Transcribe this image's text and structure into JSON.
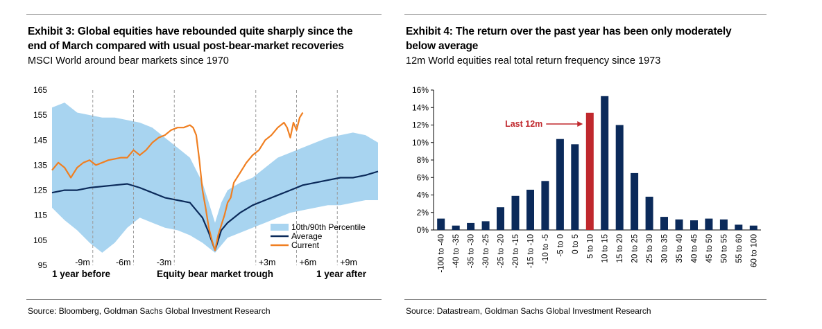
{
  "left": {
    "title_line1": "Exhibit 3: Global equities have rebounded quite sharply since the",
    "title_line2": "end of March compared with usual post-bear-market recoveries",
    "subtitle": "MSCI World around bear markets since 1970",
    "source": "Source: Bloomberg, Goldman Sachs Global Investment Research"
  },
  "right": {
    "title_line1": "Exhibit 4: The return over the past year has been only moderately",
    "title_line2": "below average",
    "subtitle": "12m World equities real total return frequency since 1973",
    "source": "Source: Datastream, Goldman Sachs Global Investment Research"
  },
  "chart_data": [
    {
      "type": "line",
      "ylim": [
        95,
        165
      ],
      "y_ticks": [
        95,
        105,
        115,
        125,
        135,
        145,
        155,
        165
      ],
      "x_range_days": [
        -260,
        260
      ],
      "period_labels": [
        "-9m",
        "-6m",
        "-3m",
        "+3m",
        "+6m",
        "+9m"
      ],
      "period_days": [
        -195,
        -130,
        -65,
        65,
        130,
        195
      ],
      "bottom_labels": [
        "1 year before",
        "Equity bear market trough",
        "1 year after"
      ],
      "grid": "vertical dashed at quarter marks",
      "legend_position": "bottom-right",
      "colors": {
        "band": "#a8d4f0",
        "average": "#0b2a5a",
        "current": "#f07f21"
      },
      "series": [
        {
          "name": "10th/90th Percentile",
          "kind": "band",
          "x": [
            -260,
            -240,
            -220,
            -200,
            -180,
            -160,
            -140,
            -120,
            -100,
            -80,
            -60,
            -40,
            -20,
            -10,
            0,
            10,
            20,
            40,
            60,
            80,
            100,
            120,
            140,
            160,
            180,
            200,
            220,
            240,
            260
          ],
          "upper": [
            158,
            160,
            156,
            155,
            154,
            154,
            153,
            152,
            150,
            146,
            142,
            138,
            128,
            120,
            112,
            120,
            125,
            128,
            130,
            134,
            138,
            140,
            142,
            144,
            146,
            147,
            148,
            147,
            144
          ],
          "lower": [
            118,
            113,
            109,
            104,
            100,
            104,
            110,
            114,
            112,
            110,
            109,
            107,
            104,
            102,
            100,
            103,
            106,
            108,
            110,
            112,
            114,
            116,
            117,
            118,
            119,
            119,
            120,
            121,
            121
          ]
        },
        {
          "name": "Average",
          "x": [
            -260,
            -240,
            -220,
            -200,
            -180,
            -160,
            -140,
            -120,
            -100,
            -80,
            -60,
            -40,
            -20,
            -10,
            0,
            10,
            20,
            40,
            60,
            80,
            100,
            120,
            140,
            160,
            180,
            200,
            220,
            240,
            260
          ],
          "values": [
            124,
            125,
            125,
            126,
            126.5,
            127,
            127.5,
            126,
            124,
            122,
            121,
            120,
            114,
            108,
            101,
            109,
            112,
            116,
            119,
            121,
            123,
            125,
            127,
            128,
            129,
            130,
            130,
            131,
            132.5
          ]
        },
        {
          "name": "Current",
          "x": [
            -260,
            -250,
            -240,
            -230,
            -220,
            -210,
            -200,
            -190,
            -180,
            -170,
            -160,
            -150,
            -140,
            -130,
            -120,
            -110,
            -100,
            -90,
            -80,
            -70,
            -60,
            -50,
            -40,
            -35,
            -30,
            -25,
            -20,
            -15,
            -10,
            -5,
            0,
            5,
            10,
            15,
            20,
            25,
            30,
            40,
            50,
            60,
            70,
            80,
            90,
            100,
            110,
            115,
            120,
            125,
            130,
            135,
            140
          ],
          "values": [
            133,
            136,
            134,
            130,
            134,
            136,
            137,
            135,
            136,
            137,
            137.5,
            138,
            138,
            141,
            139,
            141,
            144,
            146,
            147,
            149,
            150,
            150,
            151,
            150,
            147,
            137,
            125,
            118,
            110,
            105,
            101,
            107,
            111,
            115,
            120,
            122,
            128,
            132,
            136,
            139,
            141,
            145,
            147,
            150,
            152,
            150,
            146,
            152,
            149,
            154,
            156
          ]
        }
      ]
    },
    {
      "type": "bar",
      "categories": [
        "-100 to -40",
        "-40 to -35",
        "-35 to -30",
        "-30 to -25",
        "-25 to -20",
        "-20 to -15",
        "-15 to -10",
        "-10 to -5",
        "-5 to 0",
        "0 to 5",
        "5 to 10",
        "10 to 15",
        "15 to 20",
        "20 to 25",
        "25 to 30",
        "30 to 35",
        "35 to 40",
        "40 to 45",
        "45 to 50",
        "50 to 55",
        "55 to 60",
        "60 to 100"
      ],
      "values": [
        1.3,
        0.5,
        0.8,
        1.0,
        2.6,
        3.9,
        4.6,
        5.6,
        10.4,
        9.8,
        13.4,
        15.3,
        12.0,
        6.5,
        3.8,
        1.5,
        1.2,
        1.1,
        1.3,
        1.2,
        0.6,
        0.5
      ],
      "highlight_index": 10,
      "highlight_label": "Last 12m",
      "ylim": [
        0,
        16
      ],
      "y_ticks": [
        "0%",
        "2%",
        "4%",
        "6%",
        "8%",
        "10%",
        "12%",
        "14%",
        "16%"
      ],
      "colors": {
        "bar": "#0b2a5a",
        "highlight": "#c0282d",
        "annotation": "#c0282d"
      }
    }
  ]
}
